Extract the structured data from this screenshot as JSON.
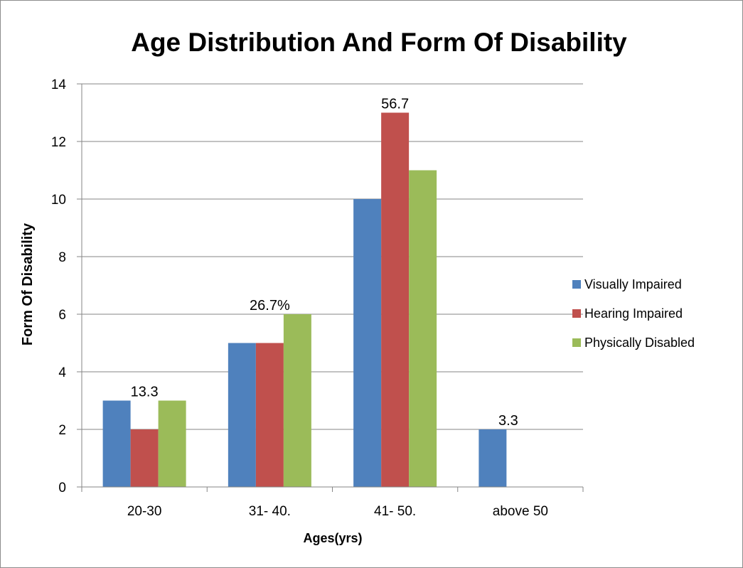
{
  "chart_data": {
    "type": "bar",
    "title": "Age Distribution And Form Of Disability",
    "xlabel": "Ages(yrs)",
    "ylabel": "Form Of Disability",
    "ylim": [
      0,
      14
    ],
    "yticks": [
      0,
      2,
      4,
      6,
      8,
      10,
      12,
      14
    ],
    "categories": [
      "20-30",
      "31- 40.",
      "41- 50.",
      "above 50"
    ],
    "series": [
      {
        "name": "Visually Impaired",
        "color": "#4f81bd",
        "values": [
          3,
          5,
          10,
          2
        ]
      },
      {
        "name": "Hearing Impaired",
        "color": "#c0504d",
        "values": [
          2,
          5,
          13,
          0
        ]
      },
      {
        "name": "Physically Disabled",
        "color": "#9bbb59",
        "values": [
          3,
          6,
          11,
          0
        ]
      }
    ],
    "annotations": [
      {
        "category": "20-30",
        "text": "13.3"
      },
      {
        "category": "31- 40.",
        "text": "26.7%"
      },
      {
        "category": "41- 50.",
        "text": "56.7"
      },
      {
        "category": "above 50",
        "text": "3.3"
      }
    ],
    "grid": true,
    "legend_position": "right"
  }
}
